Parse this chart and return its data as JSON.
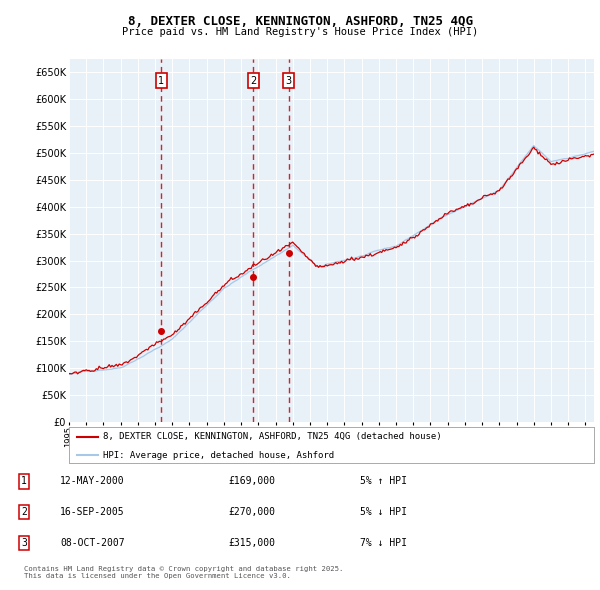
{
  "title": "8, DEXTER CLOSE, KENNINGTON, ASHFORD, TN25 4QG",
  "subtitle": "Price paid vs. HM Land Registry's House Price Index (HPI)",
  "property_label": "8, DEXTER CLOSE, KENNINGTON, ASHFORD, TN25 4QG (detached house)",
  "hpi_label": "HPI: Average price, detached house, Ashford",
  "footer": "Contains HM Land Registry data © Crown copyright and database right 2025.\nThis data is licensed under the Open Government Licence v3.0.",
  "transactions": [
    {
      "num": 1,
      "date": "12-MAY-2000",
      "price": 169000,
      "pct": "5%",
      "dir": "↑",
      "year": 2000.36
    },
    {
      "num": 2,
      "date": "16-SEP-2005",
      "price": 270000,
      "pct": "5%",
      "dir": "↓",
      "year": 2005.71
    },
    {
      "num": 3,
      "date": "08-OCT-2007",
      "price": 315000,
      "pct": "7%",
      "dir": "↓",
      "year": 2007.77
    }
  ],
  "property_color": "#cc0000",
  "hpi_color": "#a8c8e8",
  "plot_bg": "#e8f0f8",
  "grid_color": "#ffffff",
  "vline_color": "#cc0000",
  "box_color": "#cc0000",
  "ylim_min": 0,
  "ylim_max": 675000,
  "xmin": 1995.0,
  "xmax": 2025.5,
  "yticks": [
    0,
    50000,
    100000,
    150000,
    200000,
    250000,
    300000,
    350000,
    400000,
    450000,
    500000,
    550000,
    600000,
    650000
  ]
}
